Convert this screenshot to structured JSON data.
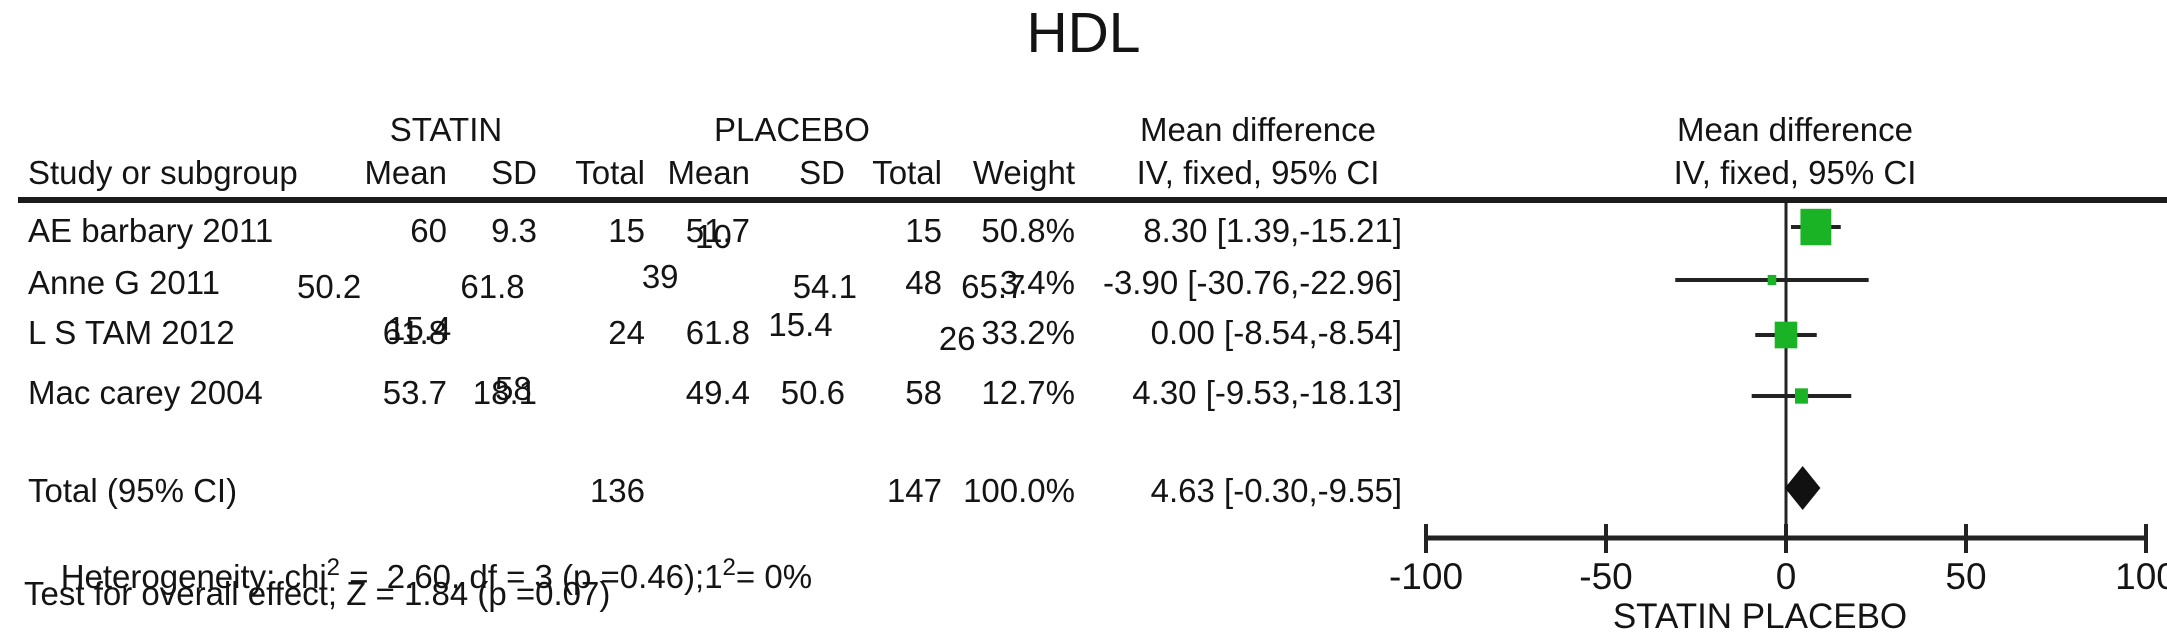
{
  "title": "HDL",
  "table": {
    "group1_header": "STATIN",
    "group2_header": "PLACEBO",
    "col_headers": {
      "study": "Study or subgroup",
      "mean": "Mean",
      "sd": "SD",
      "total": "Total",
      "weight": "Weight"
    },
    "md_header_line1": "Mean difference",
    "md_header_line2": "IV, fixed, 95% CI",
    "rows": [
      {
        "study": "AE barbary 2011",
        "s_mean": "60",
        "s_sd": "9.3",
        "s_total": "15",
        "p_mean": "51.7",
        "p_sd": "10",
        "p_total": "15",
        "weight": "50.8%",
        "md": "8.30 [1.39,-15.21]"
      },
      {
        "study": "Anne G 2011",
        "s_mean": "50.2",
        "s_sd": "61.8",
        "s_total": "39",
        "p_mean": "54.1",
        "p_sd": "65.7",
        "p_total": "48",
        "weight": "3.4%",
        "md": "-3.90 [-30.76,-22.96]"
      },
      {
        "study": "L S TAM 2012",
        "s_mean": "61.8",
        "s_sd": "15.4",
        "s_total": "24",
        "p_mean": "61.8",
        "p_sd": "15.4",
        "p_total": "26",
        "weight": "33.2%",
        "md": "0.00 [-8.54,-8.54]"
      },
      {
        "study": "Mac carey 2004",
        "s_mean": "53.7",
        "s_sd": "18.1",
        "s_total": "58",
        "p_mean": "49.4",
        "p_sd": "50.6",
        "p_total": "58",
        "weight": "12.7%",
        "md": "4.30 [-9.53,-18.13]"
      }
    ],
    "total_row": {
      "label": "Total (95% CI)",
      "s_total": "136",
      "p_total": "147",
      "weight": "100.0%",
      "md": "4.63 [-0.30,-9.55]"
    },
    "heterogeneity": {
      "prefix": "Heterogeneity: chi",
      "sup1": "2",
      "mid": " =  2.60, df = 3 (p =0.46);1",
      "sup2": "2",
      "suffix": "= 0%"
    },
    "overall_test": "Test for overall effect; Z = 1.84 (p =0.07)"
  },
  "chart_data": {
    "type": "forest",
    "title": "HDL",
    "effect_measure": "Mean difference",
    "model": "IV, fixed, 95% CI",
    "xlim": [
      -100,
      100
    ],
    "ticks": [
      -100,
      -50,
      0,
      50,
      100
    ],
    "xlabel": "STATIN PLACEBO",
    "marker_color": "#1ab326",
    "line_color": "#232323",
    "studies": [
      {
        "name": "AE barbary 2011",
        "md": 8.3,
        "ci_lo": 1.39,
        "ci_hi": 15.21,
        "weight_pct": 50.8
      },
      {
        "name": "Anne G 2011",
        "md": -3.9,
        "ci_lo": -30.76,
        "ci_hi": 22.96,
        "weight_pct": 3.4
      },
      {
        "name": "L S TAM 2012",
        "md": 0.0,
        "ci_lo": -8.54,
        "ci_hi": 8.54,
        "weight_pct": 33.2
      },
      {
        "name": "Mac carey 2004",
        "md": 4.3,
        "ci_lo": -9.53,
        "ci_hi": 18.13,
        "weight_pct": 12.7
      }
    ],
    "total": {
      "name": "Total (95% CI)",
      "md": 4.63,
      "ci_lo": -0.3,
      "ci_hi": 9.55,
      "weight_pct": 100.0
    }
  }
}
